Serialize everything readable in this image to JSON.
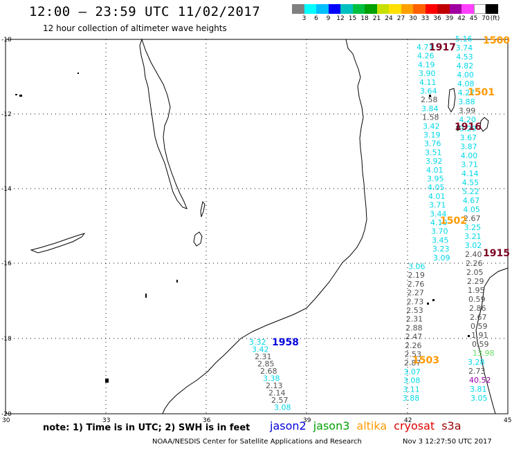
{
  "header": {
    "title": "12:00 – 23:59 UTC 11/02/2017",
    "subtitle": "12 hour collection of altimeter wave heights"
  },
  "legend": {
    "colors": [
      "#808080",
      "#00ffff",
      "#00bfff",
      "#0000ff",
      "#00c0c0",
      "#00c040",
      "#00a000",
      "#c8e000",
      "#ffe000",
      "#ffa000",
      "#ff6000",
      "#ff0000",
      "#c00000",
      "#a000a0",
      "#ff40ff",
      "#ffffff",
      "#000000"
    ],
    "labels": [
      "3",
      "6",
      "9",
      "12",
      "15",
      "18",
      "21",
      "24",
      "27",
      "30",
      "33",
      "36",
      "39",
      "42",
      "45",
      "70",
      "(ft)"
    ]
  },
  "axes": {
    "lat_labels": [
      "-10",
      "-12",
      "-14",
      "-16",
      "-18",
      "-20"
    ],
    "lon_labels": [
      "30",
      "33",
      "36",
      "39",
      "42",
      "45"
    ]
  },
  "markers": [
    {
      "label": "1500",
      "color": "#ff9900"
    },
    {
      "label": "1917",
      "color": "#7a0020"
    },
    {
      "label": "1501",
      "color": "#ff9900"
    },
    {
      "label": "1916",
      "color": "#7a0020"
    },
    {
      "label": "1502",
      "color": "#ff9900"
    },
    {
      "label": "1915",
      "color": "#7a0020"
    },
    {
      "label": "1958",
      "color": "#0000dd"
    },
    {
      "label": "1503",
      "color": "#ff9900"
    }
  ],
  "wave_colors": {
    "cyan": "#00d8e8",
    "gray": "#505050",
    "green": "#66dd66",
    "purple": "#9900aa"
  },
  "waves_track_a": [
    [
      "4.71",
      "cyan"
    ],
    [
      "4.26",
      "cyan"
    ],
    [
      "4.19",
      "cyan"
    ],
    [
      "3.90",
      "cyan"
    ],
    [
      "4.11",
      "cyan"
    ],
    [
      "3.64",
      "cyan"
    ],
    [
      "2.58",
      "gray"
    ],
    [
      "3.84",
      "cyan"
    ],
    [
      "1.58",
      "gray"
    ],
    [
      "3.42",
      "cyan"
    ],
    [
      "3.19",
      "cyan"
    ],
    [
      "3.76",
      "cyan"
    ],
    [
      "3.51",
      "cyan"
    ],
    [
      "3.92",
      "cyan"
    ],
    [
      "4.01",
      "cyan"
    ],
    [
      "3.95",
      "cyan"
    ],
    [
      "4.05",
      "cyan"
    ],
    [
      "4.01",
      "cyan"
    ],
    [
      "3.71",
      "cyan"
    ],
    [
      "3.44",
      "cyan"
    ],
    [
      "4.10",
      "cyan"
    ],
    [
      "3.70",
      "cyan"
    ],
    [
      "3.45",
      "cyan"
    ],
    [
      "3.23",
      "cyan"
    ],
    [
      "3.09",
      "cyan"
    ],
    [
      "3.06",
      "cyan"
    ],
    [
      "2.19",
      "gray"
    ],
    [
      "2.76",
      "gray"
    ],
    [
      "2.27",
      "gray"
    ],
    [
      "2.73",
      "gray"
    ],
    [
      "2.53",
      "gray"
    ],
    [
      "2.31",
      "gray"
    ],
    [
      "2.88",
      "gray"
    ],
    [
      "2.47",
      "gray"
    ],
    [
      "2.26",
      "gray"
    ],
    [
      "2.53",
      "gray"
    ],
    [
      "2.87",
      "gray"
    ],
    [
      "3.07",
      "cyan"
    ],
    [
      "3.08",
      "cyan"
    ],
    [
      "3.11",
      "cyan"
    ],
    [
      "3.88",
      "cyan"
    ]
  ],
  "waves_track_b": [
    [
      "5.16",
      "cyan"
    ],
    [
      "3.74",
      "cyan"
    ],
    [
      "4.53",
      "cyan"
    ],
    [
      "4.82",
      "cyan"
    ],
    [
      "4.00",
      "cyan"
    ],
    [
      "4.08",
      "cyan"
    ],
    [
      "4.27",
      "cyan"
    ],
    [
      "3.88",
      "cyan"
    ],
    [
      "3.99",
      "gray"
    ],
    [
      "4.20",
      "cyan"
    ],
    [
      "3.29",
      "cyan"
    ],
    [
      "3.67",
      "cyan"
    ],
    [
      "3.87",
      "cyan"
    ],
    [
      "4.00",
      "cyan"
    ],
    [
      "3.71",
      "cyan"
    ],
    [
      "4.14",
      "cyan"
    ],
    [
      "4.55",
      "cyan"
    ],
    [
      "5.22",
      "cyan"
    ],
    [
      "4.67",
      "cyan"
    ],
    [
      "4.05",
      "cyan"
    ],
    [
      "2.67",
      "gray"
    ],
    [
      "3.25",
      "cyan"
    ],
    [
      "3.21",
      "cyan"
    ],
    [
      "3.02",
      "cyan"
    ],
    [
      "2.40",
      "gray"
    ],
    [
      "2.26",
      "gray"
    ],
    [
      "2.05",
      "gray"
    ],
    [
      "2.29",
      "gray"
    ],
    [
      "1.95",
      "gray"
    ],
    [
      "0.59",
      "gray"
    ],
    [
      "2.86",
      "gray"
    ],
    [
      "2.67",
      "gray"
    ],
    [
      "0.59",
      "gray"
    ],
    [
      "1.91",
      "gray"
    ],
    [
      "0.59",
      "gray"
    ],
    [
      "13.98",
      "green"
    ],
    [
      "3.28",
      "cyan"
    ],
    [
      "2.73",
      "gray"
    ],
    [
      "40.52",
      "purple"
    ],
    [
      "3.81",
      "cyan"
    ],
    [
      "3.05",
      "cyan"
    ]
  ],
  "waves_track_c": [
    [
      "3.32",
      "cyan"
    ],
    [
      "3.42",
      "cyan"
    ],
    [
      "2.31",
      "gray"
    ],
    [
      "2.85",
      "gray"
    ],
    [
      "2.68",
      "gray"
    ],
    [
      "3.38",
      "cyan"
    ],
    [
      "2.13",
      "gray"
    ],
    [
      "2.14",
      "gray"
    ],
    [
      "2.57",
      "gray"
    ],
    [
      "3.08",
      "cyan"
    ]
  ],
  "footer": {
    "note": "note:  1) Time is in UTC;  2) SWH is in feet",
    "satellites": [
      {
        "name": "jason2",
        "color": "#0000dd"
      },
      {
        "name": "jason3",
        "color": "#00a000"
      },
      {
        "name": "altika",
        "color": "#ff9900"
      },
      {
        "name": "cryosat",
        "color": "#dd0000"
      },
      {
        "name": "s3a",
        "color": "#990000"
      }
    ],
    "credit": "NOAA/NESDIS Center for Satellite Applications and Research",
    "timestamp": "Nov  3 12:27:50 UTC 2017"
  }
}
